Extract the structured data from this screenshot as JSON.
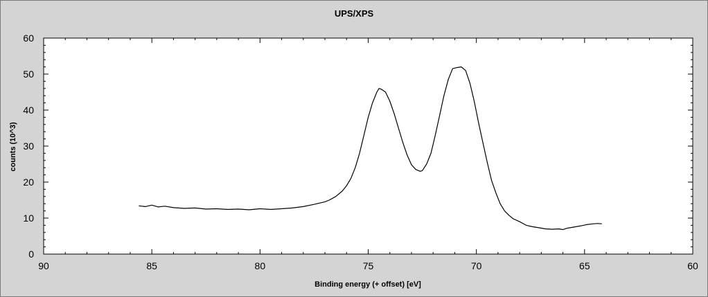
{
  "chart_data": {
    "type": "line",
    "title": "UPS/XPS",
    "xlabel": "Binding energy (+ offset) [eV]",
    "ylabel": "counts (10^3)",
    "xlim": [
      90,
      60
    ],
    "ylim": [
      0,
      60
    ],
    "x_axis_reversed": true,
    "grid": false,
    "legend": "none",
    "x_ticks": [
      "90",
      "85",
      "80",
      "75",
      "70",
      "65",
      "60"
    ],
    "y_ticks": [
      "0",
      "10",
      "20",
      "30",
      "40",
      "50",
      "60"
    ],
    "series": [
      {
        "color": "#000000",
        "x": [
          85.6,
          85.3,
          85.0,
          84.7,
          84.4,
          84.0,
          83.5,
          83.0,
          82.5,
          82.0,
          81.5,
          81.0,
          80.5,
          80.0,
          79.5,
          79.0,
          78.5,
          78.0,
          77.5,
          77.0,
          76.8,
          76.5,
          76.2,
          76.0,
          75.8,
          75.6,
          75.4,
          75.2,
          75.0,
          74.8,
          74.6,
          74.5,
          74.4,
          74.2,
          74.0,
          73.8,
          73.6,
          73.4,
          73.2,
          73.0,
          72.8,
          72.6,
          72.5,
          72.3,
          72.1,
          71.9,
          71.7,
          71.5,
          71.3,
          71.1,
          70.9,
          70.7,
          70.5,
          70.3,
          70.1,
          69.9,
          69.7,
          69.5,
          69.3,
          69.1,
          68.9,
          68.7,
          68.5,
          68.3,
          68.0,
          67.7,
          67.4,
          67.1,
          66.8,
          66.5,
          66.2,
          66.0,
          65.8,
          65.5,
          65.2,
          64.9,
          64.6,
          64.4,
          64.2
        ],
        "y": [
          13.4,
          13.2,
          13.6,
          13.1,
          13.3,
          12.9,
          12.7,
          12.8,
          12.5,
          12.6,
          12.4,
          12.5,
          12.3,
          12.6,
          12.4,
          12.6,
          12.8,
          13.2,
          13.8,
          14.5,
          15.0,
          16.0,
          17.5,
          19.0,
          21.0,
          24.0,
          28.0,
          33.0,
          38.0,
          42.0,
          45.0,
          46.0,
          45.8,
          45.0,
          42.5,
          39.0,
          35.0,
          31.0,
          27.5,
          24.8,
          23.5,
          23.0,
          23.2,
          25.0,
          28.0,
          33.0,
          38.5,
          44.0,
          48.5,
          51.5,
          51.8,
          52.0,
          51.0,
          47.5,
          42.5,
          36.5,
          31.0,
          25.5,
          20.5,
          17.0,
          14.0,
          12.0,
          10.8,
          9.8,
          9.0,
          8.0,
          7.6,
          7.3,
          7.0,
          6.9,
          7.0,
          6.8,
          7.2,
          7.5,
          7.8,
          8.2,
          8.4,
          8.5,
          8.4
        ]
      }
    ]
  }
}
